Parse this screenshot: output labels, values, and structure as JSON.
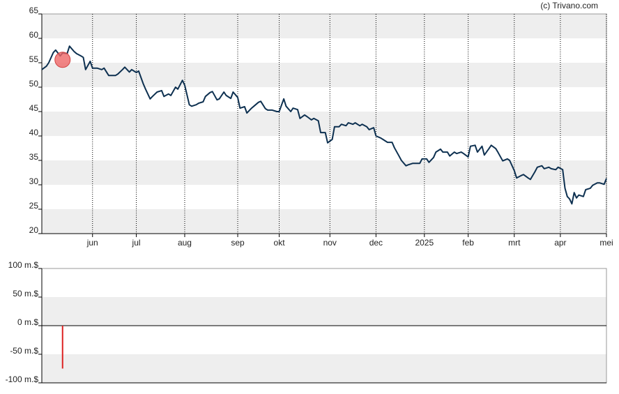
{
  "credit": "(c) Trivano.com",
  "chart_data": [
    {
      "type": "line",
      "color": "#0d3050",
      "xlim": [
        0,
        245
      ],
      "ylim": [
        20,
        65
      ],
      "yticks": [
        20,
        25,
        30,
        35,
        40,
        45,
        50,
        55,
        60,
        65
      ],
      "xticks": [
        {
          "value": 22,
          "label": "jun"
        },
        {
          "value": 41,
          "label": "jul"
        },
        {
          "value": 62,
          "label": "aug"
        },
        {
          "value": 85,
          "label": "sep"
        },
        {
          "value": 103,
          "label": "okt"
        },
        {
          "value": 125,
          "label": "nov"
        },
        {
          "value": 145,
          "label": "dec"
        },
        {
          "value": 166,
          "label": "2025"
        },
        {
          "value": 185,
          "label": "feb"
        },
        {
          "value": 205,
          "label": "mrt"
        },
        {
          "value": 225,
          "label": "apr"
        },
        {
          "value": 245,
          "label": "mei"
        }
      ],
      "bands": true,
      "xgrid": true,
      "x": [
        0,
        2,
        3,
        5,
        6,
        8,
        9,
        11,
        12,
        14,
        15,
        17,
        18,
        19,
        21,
        22,
        24,
        26,
        27,
        29,
        30,
        32,
        33,
        35,
        36,
        38,
        39,
        41,
        42,
        44,
        45,
        47,
        48,
        50,
        52,
        53,
        55,
        56,
        58,
        59,
        61,
        62,
        64,
        65,
        67,
        68,
        70,
        71,
        73,
        74,
        76,
        77,
        79,
        80,
        82,
        83,
        85,
        86,
        88,
        89,
        91,
        92,
        94,
        95,
        97,
        98,
        100,
        102,
        103,
        105,
        106,
        108,
        109,
        111,
        112,
        114,
        115,
        117,
        118,
        120,
        121,
        123,
        124,
        126,
        127,
        129,
        130,
        132,
        133,
        135,
        136,
        138,
        139,
        141,
        142,
        144,
        145,
        147,
        148,
        150,
        152,
        153,
        155,
        156,
        158,
        159,
        161,
        162,
        164,
        165,
        167,
        168,
        170,
        171,
        173,
        174,
        176,
        177,
        179,
        180,
        182,
        183,
        185,
        186,
        188,
        189,
        191,
        192,
        194,
        195,
        197,
        198,
        200,
        202,
        203,
        205,
        206,
        208,
        209,
        211,
        212,
        214,
        215,
        217,
        218,
        220,
        221,
        223,
        224,
        226,
        227,
        228,
        229,
        230,
        231,
        232,
        233,
        235,
        236,
        238,
        239,
        241,
        242,
        244,
        245
      ],
      "values": [
        53.6,
        54.3,
        55,
        57.1,
        57.6,
        56.4,
        57,
        56.9,
        58.4,
        57.3,
        56.9,
        56.4,
        56.1,
        53.6,
        55.3,
        53.9,
        53.9,
        53.6,
        53.9,
        52.4,
        52.4,
        52.4,
        52.7,
        53.6,
        54.1,
        53.1,
        53.6,
        53,
        53.3,
        50.7,
        49.6,
        47.6,
        48.1,
        49,
        49.3,
        48.1,
        48.6,
        48.3,
        50,
        49.6,
        51.4,
        50.4,
        46.4,
        46.1,
        46.4,
        46.7,
        47,
        48.1,
        48.9,
        49.1,
        47.4,
        47.6,
        49,
        48.3,
        47.7,
        49,
        47.9,
        45.7,
        46,
        44.7,
        45.7,
        46.1,
        46.9,
        47.1,
        45.6,
        45.3,
        45.3,
        45,
        45,
        47.6,
        46.1,
        45,
        45.7,
        45.4,
        43.6,
        44.3,
        44,
        43.3,
        43.6,
        43.1,
        40.7,
        40.7,
        38.6,
        39.3,
        41.9,
        41.9,
        42.4,
        42.1,
        42.7,
        42.4,
        42.7,
        42.1,
        42.4,
        41.9,
        41.3,
        41.7,
        40,
        39.6,
        39.3,
        38.7,
        38.7,
        37.6,
        35.9,
        35,
        33.9,
        34.1,
        34.4,
        34.4,
        34.4,
        35.3,
        35.3,
        34.6,
        35.6,
        36.7,
        37.3,
        36.7,
        36.7,
        35.9,
        36.7,
        36.4,
        36.7,
        36.4,
        35.7,
        37.9,
        38.1,
        36.7,
        37.9,
        36.1,
        37.4,
        38.1,
        37.4,
        36.6,
        34.9,
        35.3,
        35,
        32.9,
        31.4,
        31.9,
        32.1,
        31.4,
        31.1,
        32.7,
        33.6,
        33.9,
        33.3,
        33.6,
        33.3,
        33.1,
        33.6,
        33.1,
        29.3,
        27.6,
        27.1,
        26.1,
        28.4,
        27.3,
        27.9,
        27.6,
        29,
        29.3,
        29.9,
        30.4,
        30.4,
        30.1,
        31.3
      ],
      "markers": [
        {
          "x": 9,
          "y": 55.6,
          "color": "#ee6666"
        }
      ]
    },
    {
      "type": "bar",
      "color": "#dd2222",
      "xlim": [
        0,
        245
      ],
      "ylim": [
        -100,
        100
      ],
      "yticks": [
        {
          "value": -100,
          "label": "-100 m.$"
        },
        {
          "value": -50,
          "label": "-50 m.$"
        },
        {
          "value": 0,
          "label": "0 m.$"
        },
        {
          "value": 50,
          "label": "50 m.$"
        },
        {
          "value": 100,
          "label": "100 m.$"
        }
      ],
      "bands": true,
      "x": [
        9
      ],
      "values": [
        -75
      ]
    }
  ]
}
